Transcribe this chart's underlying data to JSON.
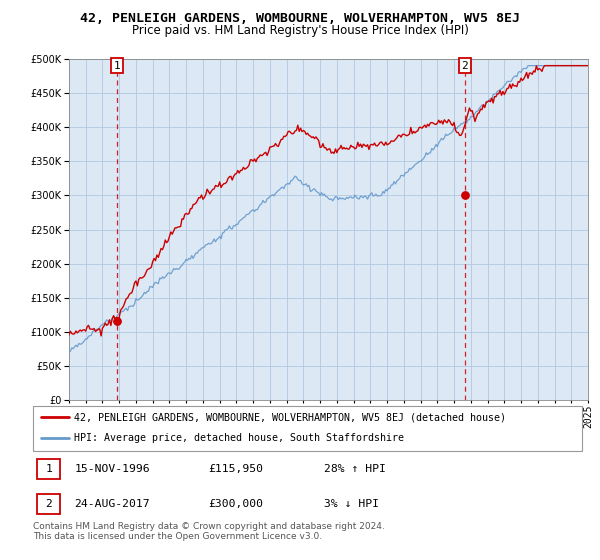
{
  "title": "42, PENLEIGH GARDENS, WOMBOURNE, WOLVERHAMPTON, WV5 8EJ",
  "subtitle": "Price paid vs. HM Land Registry's House Price Index (HPI)",
  "ylim": [
    0,
    500000
  ],
  "yticks": [
    0,
    50000,
    100000,
    150000,
    200000,
    250000,
    300000,
    350000,
    400000,
    450000,
    500000
  ],
  "background_color": "#ffffff",
  "plot_bg_color": "#dce9f5",
  "grid_color": "#b0c8e0",
  "red_line_color": "#cc0000",
  "blue_line_color": "#6699cc",
  "dashed_line_color": "#cc0000",
  "annotation1_year": 1996.88,
  "annotation1_value": 115950,
  "annotation2_year": 2017.65,
  "annotation2_value": 300000,
  "legend_red_label": "42, PENLEIGH GARDENS, WOMBOURNE, WOLVERHAMPTON, WV5 8EJ (detached house)",
  "legend_blue_label": "HPI: Average price, detached house, South Staffordshire",
  "table_row1": [
    "1",
    "15-NOV-1996",
    "£115,950",
    "28% ↑ HPI"
  ],
  "table_row2": [
    "2",
    "24-AUG-2017",
    "£300,000",
    "3% ↓ HPI"
  ],
  "footer": "Contains HM Land Registry data © Crown copyright and database right 2024.\nThis data is licensed under the Open Government Licence v3.0.",
  "title_fontsize": 9.5,
  "subtitle_fontsize": 8.5,
  "tick_fontsize": 7,
  "footer_fontsize": 6.5
}
